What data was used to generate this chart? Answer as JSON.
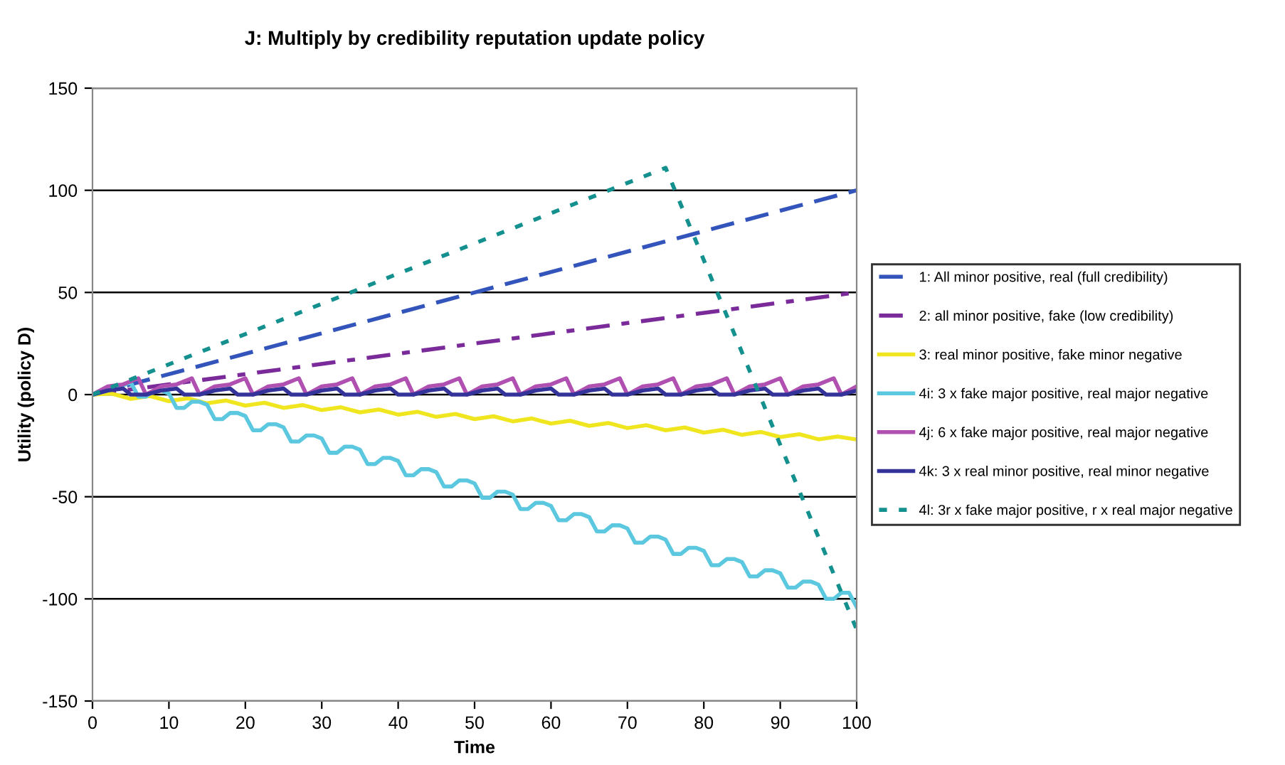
{
  "chart_data": {
    "type": "line",
    "title": "J: Multiply by credibility reputation update policy",
    "xlabel": "Time",
    "ylabel": "Utility (policy D)",
    "xlim": [
      0,
      100
    ],
    "xticks": [
      0,
      10,
      20,
      30,
      40,
      50,
      60,
      70,
      80,
      90,
      100
    ],
    "ylim": [
      -150,
      150
    ],
    "yticks": [
      -150,
      -100,
      -50,
      0,
      50,
      100,
      150
    ],
    "grid": "y",
    "legend": "right",
    "marker": "none",
    "series": [
      {
        "name": "1: All minor positive, real (full credibility)",
        "color": "#3355bb",
        "line_style": "dashed",
        "x": [
          0,
          25,
          50,
          75,
          100
        ],
        "values": [
          0,
          25,
          50,
          75,
          100
        ]
      },
      {
        "name": "2: all minor positive, fake (low credibility)",
        "color": "#7b2a9a",
        "line_style": "dashdot",
        "x": [
          0,
          25,
          50,
          75,
          100
        ],
        "values": [
          0,
          12.5,
          25,
          37.5,
          50
        ]
      },
      {
        "name": "3: real minor positive, fake minor negative",
        "color": "#f0e620",
        "line_style": "solid",
        "x": [
          0,
          2.5,
          5,
          7.5,
          10,
          12.5,
          15,
          17.5,
          20,
          22.5,
          25,
          27.5,
          30,
          32.5,
          35,
          37.5,
          40,
          42.5,
          45,
          47.5,
          50,
          52.5,
          55,
          57.5,
          60,
          62.5,
          65,
          67.5,
          70,
          72.5,
          75,
          77.5,
          80,
          82.5,
          85,
          87.5,
          90,
          92.5,
          95,
          97.5,
          100
        ],
        "values": [
          0,
          0.5,
          -2.1,
          -0.7,
          -3.2,
          -1.8,
          -4.3,
          -2.9,
          -5.4,
          -4,
          -6.5,
          -5.1,
          -7.6,
          -6.2,
          -8.7,
          -7.3,
          -9.8,
          -8.4,
          -10.9,
          -9.5,
          -12,
          -10.6,
          -13.1,
          -11.7,
          -14.2,
          -12.8,
          -15.3,
          -13.9,
          -16.4,
          -15,
          -17.5,
          -16.1,
          -18.6,
          -17.2,
          -19.7,
          -18.3,
          -20.8,
          -19.4,
          -21.9,
          -20.5,
          -22
        ]
      },
      {
        "name": "4i: 3 x fake major positive, real major negative",
        "color": "#5bc8df",
        "line_style": "solid",
        "x": [
          0,
          3,
          5,
          6,
          7,
          8,
          9,
          10,
          11,
          12,
          13,
          14,
          15,
          16,
          17,
          18,
          19,
          20,
          21,
          22,
          23,
          24,
          25,
          26,
          27,
          28,
          29,
          30,
          31,
          32,
          33,
          34,
          35,
          36,
          37,
          38,
          39,
          40,
          41,
          42,
          43,
          44,
          45,
          46,
          47,
          48,
          49,
          50,
          51,
          52,
          53,
          54,
          55,
          56,
          57,
          58,
          59,
          60,
          61,
          62,
          63,
          64,
          65,
          66,
          67,
          68,
          69,
          70,
          71,
          72,
          73,
          74,
          75,
          76,
          77,
          78,
          79,
          80,
          81,
          82,
          83,
          84,
          85,
          86,
          87,
          88,
          89,
          90,
          91,
          92,
          93,
          94,
          95,
          96,
          97,
          98,
          99,
          100
        ],
        "values": [
          0,
          3,
          6,
          -1,
          -1,
          2,
          2,
          0.5,
          -6.5,
          -6.5,
          -3.5,
          -3.5,
          -5,
          -12,
          -12,
          -9,
          -9,
          -10.5,
          -17.5,
          -17.5,
          -14.5,
          -14.5,
          -16,
          -23,
          -23,
          -20,
          -20,
          -21.5,
          -28.5,
          -28.5,
          -25.5,
          -25.5,
          -27,
          -34,
          -34,
          -31,
          -31,
          -32.5,
          -39.5,
          -39.5,
          -36.5,
          -36.5,
          -38,
          -45,
          -45,
          -42,
          -42,
          -43.5,
          -50.5,
          -50.5,
          -47.5,
          -47.5,
          -49,
          -56,
          -56,
          -53,
          -53,
          -54.5,
          -61.5,
          -61.5,
          -58.5,
          -58.5,
          -60,
          -67,
          -67,
          -64,
          -64,
          -65.5,
          -72.5,
          -72.5,
          -69.5,
          -69.5,
          -71,
          -78,
          -78,
          -75,
          -75,
          -76.5,
          -83.5,
          -83.5,
          -80.5,
          -80.5,
          -82,
          -89,
          -89,
          -86,
          -86,
          -87.5,
          -94.5,
          -94.5,
          -91.5,
          -91.5,
          -93,
          -100,
          -100,
          -97,
          -97,
          -104
        ]
      },
      {
        "name": "4j: 6 x fake major positive, real major negative",
        "color": "#b050b0",
        "line_style": "solid",
        "x": [
          0,
          2,
          4,
          6,
          7,
          9,
          11,
          13,
          14,
          16,
          18,
          20,
          21,
          23,
          25,
          27,
          28,
          30,
          32,
          34,
          35,
          37,
          39,
          41,
          42,
          44,
          46,
          48,
          49,
          51,
          53,
          55,
          56,
          58,
          60,
          62,
          63,
          65,
          67,
          69,
          70,
          72,
          74,
          76,
          77,
          79,
          81,
          83,
          84,
          86,
          88,
          90,
          91,
          93,
          95,
          97,
          98,
          100
        ],
        "values": [
          0,
          4,
          5,
          8,
          0,
          4,
          5,
          8,
          0,
          4,
          5,
          8,
          0,
          4,
          5,
          8,
          0,
          4,
          5,
          8,
          0,
          4,
          5,
          8,
          0,
          4,
          5,
          8,
          0,
          4,
          5,
          8,
          0,
          4,
          5,
          8,
          0,
          4,
          5,
          8,
          0,
          4,
          5,
          8,
          0,
          4,
          5,
          8,
          0,
          4,
          5,
          8,
          0,
          4,
          5,
          8,
          0,
          4
        ]
      },
      {
        "name": "4k: 3 x real minor positive, real minor negative",
        "color": "#333399",
        "line_style": "solid",
        "x": [
          0,
          2,
          4,
          5,
          7,
          9,
          11,
          12,
          14,
          16,
          18,
          19,
          21,
          23,
          25,
          26,
          28,
          30,
          32,
          33,
          35,
          37,
          39,
          40,
          42,
          44,
          46,
          47,
          49,
          51,
          53,
          54,
          56,
          58,
          60,
          61,
          63,
          65,
          67,
          68,
          70,
          72,
          74,
          75,
          77,
          79,
          81,
          82,
          84,
          86,
          88,
          89,
          91,
          93,
          95,
          96,
          98,
          100
        ],
        "values": [
          0,
          2,
          3,
          0,
          0,
          2,
          3,
          0,
          0,
          2,
          3,
          0,
          0,
          2,
          3,
          0,
          0,
          2,
          3,
          0,
          0,
          2,
          3,
          0,
          0,
          2,
          3,
          0,
          0,
          2,
          3,
          0,
          0,
          2,
          3,
          0,
          0,
          2,
          3,
          0,
          0,
          2,
          3,
          0,
          0,
          2,
          3,
          0,
          0,
          2,
          3,
          0,
          0,
          2,
          3,
          0,
          0,
          2
        ]
      },
      {
        "name": "4l: 3r x fake major positive, r x real major negative",
        "color": "#14908f",
        "line_style": "dotted",
        "x": [
          0,
          75,
          100
        ],
        "values": [
          0,
          111,
          -115
        ]
      }
    ]
  }
}
